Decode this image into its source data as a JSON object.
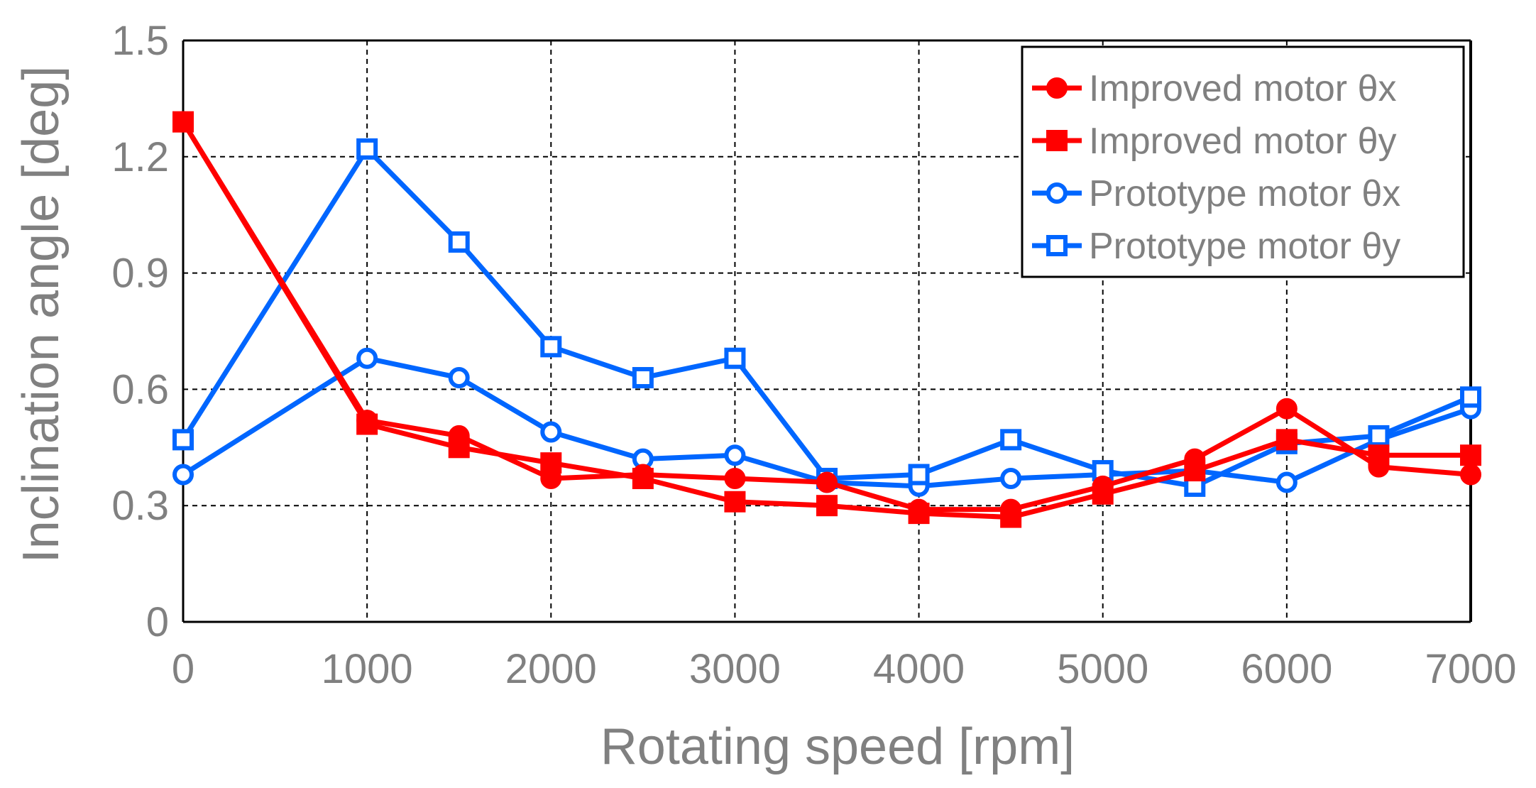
{
  "chart_data": {
    "type": "line",
    "title": "",
    "xlabel": "Rotating speed [rpm]",
    "ylabel": "Inclination angle [deg]",
    "xlim": [
      0,
      7000
    ],
    "ylim": [
      0,
      1.5
    ],
    "xticks": [
      "0",
      "1000",
      "2000",
      "3000",
      "4000",
      "5000",
      "6000",
      "7000"
    ],
    "yticks": [
      "0",
      "0.3",
      "0.6",
      "0.9",
      "1.2",
      "1.5"
    ],
    "grid": true,
    "legend_position": "top-right",
    "x": [
      0,
      1000,
      1500,
      2000,
      2500,
      3000,
      3500,
      4000,
      4500,
      5000,
      5500,
      6000,
      6500,
      7000
    ],
    "series": [
      {
        "name": "Improved motor θx",
        "color": "#ff0000",
        "marker": "circle",
        "filled": true,
        "x": [
          0,
          1000,
          1500,
          2000,
          2500,
          3000,
          3500,
          4000,
          4500,
          5000,
          5500,
          6000,
          6500,
          7000
        ],
        "values": [
          1.29,
          0.52,
          0.48,
          0.37,
          0.38,
          0.37,
          0.36,
          0.29,
          0.29,
          0.35,
          0.42,
          0.55,
          0.4,
          0.38
        ]
      },
      {
        "name": "Improved motor θy",
        "color": "#ff0000",
        "marker": "square",
        "filled": true,
        "x": [
          0,
          1000,
          1500,
          2000,
          2500,
          3000,
          3500,
          4000,
          4500,
          5000,
          5500,
          6000,
          6500,
          7000
        ],
        "values": [
          1.29,
          0.51,
          0.45,
          0.41,
          0.37,
          0.31,
          0.3,
          0.28,
          0.27,
          0.33,
          0.39,
          0.47,
          0.43,
          0.43
        ]
      },
      {
        "name": "Prototype motor θx",
        "color": "#0066ff",
        "marker": "circle",
        "filled": false,
        "x": [
          0,
          1000,
          1500,
          2000,
          2500,
          3000,
          3500,
          4000,
          4500,
          5000,
          5500,
          6000,
          6500,
          7000
        ],
        "values": [
          0.38,
          0.68,
          0.63,
          0.49,
          0.42,
          0.43,
          0.36,
          0.35,
          0.37,
          0.38,
          0.39,
          0.36,
          0.47,
          0.55
        ]
      },
      {
        "name": "Prototype motor θy",
        "color": "#0066ff",
        "marker": "square",
        "filled": false,
        "x": [
          0,
          1000,
          1500,
          2000,
          2500,
          3000,
          3500,
          4000,
          4500,
          5000,
          5500,
          6000,
          6500,
          7000
        ],
        "values": [
          0.47,
          1.22,
          0.98,
          0.71,
          0.63,
          0.68,
          0.37,
          0.38,
          0.47,
          0.39,
          0.35,
          0.46,
          0.48,
          0.58
        ]
      }
    ]
  }
}
